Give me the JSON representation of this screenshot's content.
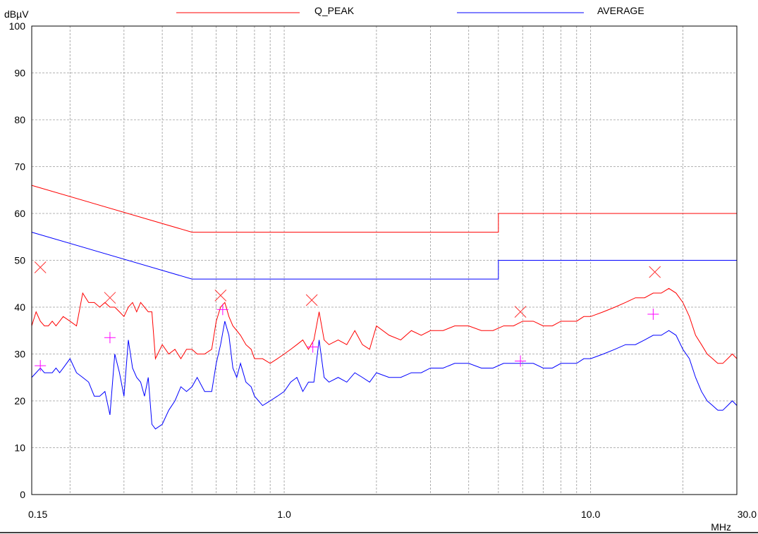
{
  "chart_data": {
    "type": "line",
    "xscale": "log",
    "xlim": [
      0.15,
      30.0
    ],
    "ylim": [
      0,
      100
    ],
    "ylabel": "dBµV",
    "xlabel": "MHz",
    "grid": true,
    "legend": "top",
    "x_tick_labels": [
      {
        "value": 0.15,
        "label": "0.15"
      },
      {
        "value": 1.0,
        "label": "1.0"
      },
      {
        "value": 10.0,
        "label": "10.0"
      },
      {
        "value": 30.0,
        "label": "30.0"
      }
    ],
    "y_ticks": [
      0,
      10,
      20,
      30,
      40,
      50,
      60,
      70,
      80,
      90,
      100
    ],
    "series": [
      {
        "name": "Q_PEAK",
        "color": "#ff0000",
        "x": [
          0.15,
          0.155,
          0.16,
          0.165,
          0.17,
          0.175,
          0.18,
          0.185,
          0.19,
          0.2,
          0.21,
          0.22,
          0.23,
          0.24,
          0.25,
          0.26,
          0.27,
          0.28,
          0.29,
          0.3,
          0.31,
          0.32,
          0.33,
          0.34,
          0.35,
          0.36,
          0.37,
          0.38,
          0.4,
          0.42,
          0.44,
          0.46,
          0.48,
          0.5,
          0.52,
          0.55,
          0.58,
          0.6,
          0.62,
          0.64,
          0.66,
          0.68,
          0.7,
          0.72,
          0.75,
          0.78,
          0.8,
          0.85,
          0.9,
          0.95,
          1.0,
          1.05,
          1.1,
          1.15,
          1.2,
          1.25,
          1.3,
          1.35,
          1.4,
          1.5,
          1.6,
          1.7,
          1.8,
          1.9,
          2.0,
          2.2,
          2.4,
          2.6,
          2.8,
          3.0,
          3.3,
          3.6,
          4.0,
          4.4,
          4.8,
          5.2,
          5.6,
          6.0,
          6.5,
          7.0,
          7.5,
          8.0,
          8.5,
          9.0,
          9.5,
          10.0,
          11.0,
          12.0,
          13.0,
          14.0,
          15.0,
          16.0,
          17.0,
          18.0,
          19.0,
          20.0,
          21.0,
          22.0,
          23.0,
          24.0,
          25.0,
          26.0,
          27.0,
          28.0,
          29.0,
          30.0
        ],
        "y": [
          36,
          39,
          37,
          36,
          36,
          37,
          36,
          37,
          38,
          37,
          36,
          43,
          41,
          41,
          40,
          41,
          40,
          40,
          39,
          38,
          40,
          41,
          39,
          41,
          40,
          39,
          39,
          29,
          32,
          30,
          31,
          29,
          31,
          31,
          30,
          30,
          31,
          37,
          40,
          41,
          38,
          36,
          35,
          34,
          32,
          31,
          29,
          29,
          28,
          29,
          30,
          31,
          32,
          33,
          31,
          33,
          39,
          33,
          32,
          33,
          32,
          35,
          32,
          31,
          36,
          34,
          33,
          35,
          34,
          35,
          35,
          36,
          36,
          35,
          35,
          36,
          36,
          37,
          37,
          36,
          36,
          37,
          37,
          37,
          38,
          38,
          39,
          40,
          41,
          42,
          42,
          43,
          43,
          44,
          43,
          41,
          38,
          34,
          32,
          30,
          29,
          28,
          28,
          29,
          30,
          29
        ]
      },
      {
        "name": "AVERAGE",
        "color": "#0000ff",
        "x": [
          0.15,
          0.155,
          0.16,
          0.165,
          0.17,
          0.175,
          0.18,
          0.185,
          0.19,
          0.2,
          0.21,
          0.22,
          0.23,
          0.24,
          0.25,
          0.26,
          0.27,
          0.28,
          0.29,
          0.3,
          0.31,
          0.32,
          0.33,
          0.34,
          0.35,
          0.36,
          0.37,
          0.38,
          0.4,
          0.42,
          0.44,
          0.46,
          0.48,
          0.5,
          0.52,
          0.55,
          0.58,
          0.6,
          0.62,
          0.64,
          0.66,
          0.68,
          0.7,
          0.72,
          0.75,
          0.78,
          0.8,
          0.85,
          0.9,
          0.95,
          1.0,
          1.05,
          1.1,
          1.15,
          1.2,
          1.25,
          1.3,
          1.35,
          1.4,
          1.5,
          1.6,
          1.7,
          1.8,
          1.9,
          2.0,
          2.2,
          2.4,
          2.6,
          2.8,
          3.0,
          3.3,
          3.6,
          4.0,
          4.4,
          4.8,
          5.2,
          5.6,
          6.0,
          6.5,
          7.0,
          7.5,
          8.0,
          8.5,
          9.0,
          9.5,
          10.0,
          11.0,
          12.0,
          13.0,
          14.0,
          15.0,
          16.0,
          17.0,
          18.0,
          19.0,
          20.0,
          21.0,
          22.0,
          23.0,
          24.0,
          25.0,
          26.0,
          27.0,
          28.0,
          29.0,
          30.0
        ],
        "y": [
          25,
          26,
          27,
          26,
          26,
          26,
          27,
          26,
          27,
          29,
          26,
          25,
          24,
          21,
          21,
          22,
          17,
          30,
          26,
          21,
          33,
          27,
          25,
          24,
          21,
          25,
          15,
          14,
          15,
          18,
          20,
          23,
          22,
          23,
          25,
          22,
          22,
          28,
          32,
          37,
          34,
          27,
          25,
          28,
          24,
          23,
          21,
          19,
          20,
          21,
          22,
          24,
          25,
          22,
          24,
          24,
          33,
          25,
          24,
          25,
          24,
          26,
          25,
          24,
          26,
          25,
          25,
          26,
          26,
          27,
          27,
          28,
          28,
          27,
          27,
          28,
          28,
          28,
          28,
          27,
          27,
          28,
          28,
          28,
          29,
          29,
          30,
          31,
          32,
          32,
          33,
          34,
          34,
          35,
          34,
          31,
          29,
          25,
          22,
          20,
          19,
          18,
          18,
          19,
          20,
          19
        ]
      },
      {
        "name": "",
        "color": "#ff0000",
        "x": [
          0.15,
          0.5,
          5.0,
          5.0,
          30.0
        ],
        "y": [
          66,
          56,
          56,
          60,
          60
        ]
      },
      {
        "name": "",
        "color": "#0000ff",
        "x": [
          0.15,
          0.5,
          5.0,
          5.0,
          30.0
        ],
        "y": [
          56,
          46,
          46,
          50,
          50
        ]
      }
    ],
    "peak_markers": {
      "color": "#ff3333",
      "x": [
        0.16,
        0.27,
        0.62,
        1.23,
        5.9,
        16.2
      ],
      "y": [
        48.5,
        42,
        42.5,
        41.5,
        39,
        47.5
      ]
    },
    "avg_markers": {
      "color": "#ff00ff",
      "x": [
        0.16,
        0.27,
        0.63,
        1.24,
        5.9,
        16.0
      ],
      "y": [
        27.5,
        33.5,
        39.5,
        31.5,
        28.5,
        38.5
      ]
    }
  }
}
